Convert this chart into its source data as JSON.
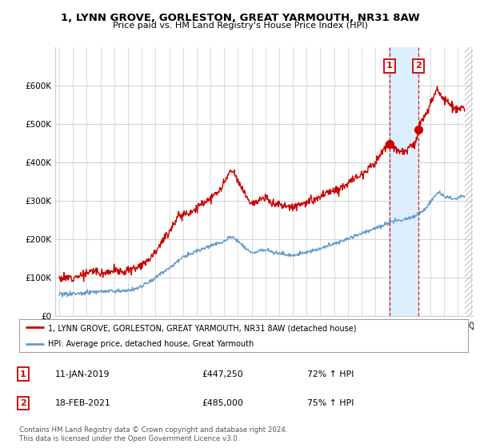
{
  "title": "1, LYNN GROVE, GORLESTON, GREAT YARMOUTH, NR31 8AW",
  "subtitle": "Price paid vs. HM Land Registry's House Price Index (HPI)",
  "legend_line1": "1, LYNN GROVE, GORLESTON, GREAT YARMOUTH, NR31 8AW (detached house)",
  "legend_line2": "HPI: Average price, detached house, Great Yarmouth",
  "annotation1_label": "1",
  "annotation1_date": "11-JAN-2019",
  "annotation1_price": "£447,250",
  "annotation1_hpi": "72% ↑ HPI",
  "annotation2_label": "2",
  "annotation2_date": "18-FEB-2021",
  "annotation2_price": "£485,000",
  "annotation2_hpi": "75% ↑ HPI",
  "footnote": "Contains HM Land Registry data © Crown copyright and database right 2024.\nThis data is licensed under the Open Government Licence v3.0.",
  "red_color": "#cc0000",
  "blue_color": "#6699cc",
  "highlight_color": "#ddeeff",
  "background_color": "#ffffff",
  "grid_color": "#cccccc",
  "ylim": [
    0,
    700000
  ],
  "yticks": [
    0,
    100000,
    200000,
    300000,
    400000,
    500000,
    600000
  ],
  "ytick_labels": [
    "£0",
    "£100K",
    "£200K",
    "£300K",
    "£400K",
    "£500K",
    "£600K"
  ],
  "sale1_x": 2019.03,
  "sale1_y": 447250,
  "sale2_x": 2021.13,
  "sale2_y": 485000,
  "vline1_x": 2019.03,
  "vline2_x": 2021.13,
  "xmin": 1995.0,
  "xmax": 2025.0,
  "hatch_start": 2024.5
}
